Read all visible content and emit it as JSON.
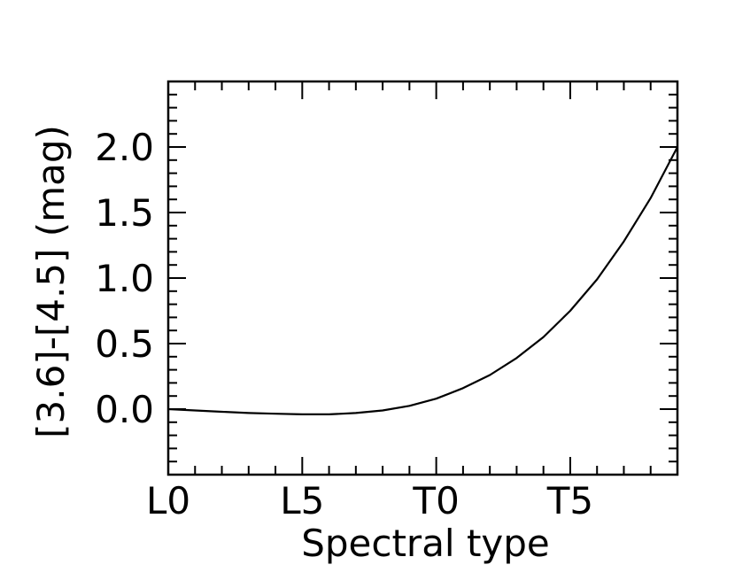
{
  "chart_data": {
    "type": "line",
    "xlabel": "Spectral type",
    "ylabel": "[3.6]-[4.5] (mag)",
    "x_tick_labels": [
      {
        "value": 0,
        "label": "L0"
      },
      {
        "value": 5,
        "label": "L5"
      },
      {
        "value": 10,
        "label": "T0"
      },
      {
        "value": 15,
        "label": "T5"
      }
    ],
    "y_tick_labels": [
      {
        "value": 0.0,
        "label": "0.0"
      },
      {
        "value": 0.5,
        "label": "0.5"
      },
      {
        "value": 1.0,
        "label": "1.0"
      },
      {
        "value": 1.5,
        "label": "1.5"
      },
      {
        "value": 2.0,
        "label": "2.0"
      }
    ],
    "xlim": [
      0,
      19
    ],
    "ylim": [
      -0.5,
      2.5
    ],
    "x_minor_step": 1,
    "y_minor_step": 0.1,
    "grid": false,
    "series": [
      {
        "x": [
          0,
          1,
          2,
          3,
          4,
          5,
          6,
          7,
          8,
          9,
          10,
          11,
          12,
          13,
          14,
          15,
          16,
          17,
          18,
          19
        ],
        "y": [
          0.0,
          -0.01,
          -0.02,
          -0.03,
          -0.035,
          -0.04,
          -0.04,
          -0.03,
          -0.01,
          0.025,
          0.08,
          0.16,
          0.26,
          0.39,
          0.55,
          0.75,
          0.99,
          1.28,
          1.61,
          2.0
        ],
        "color": "#000000"
      }
    ]
  }
}
